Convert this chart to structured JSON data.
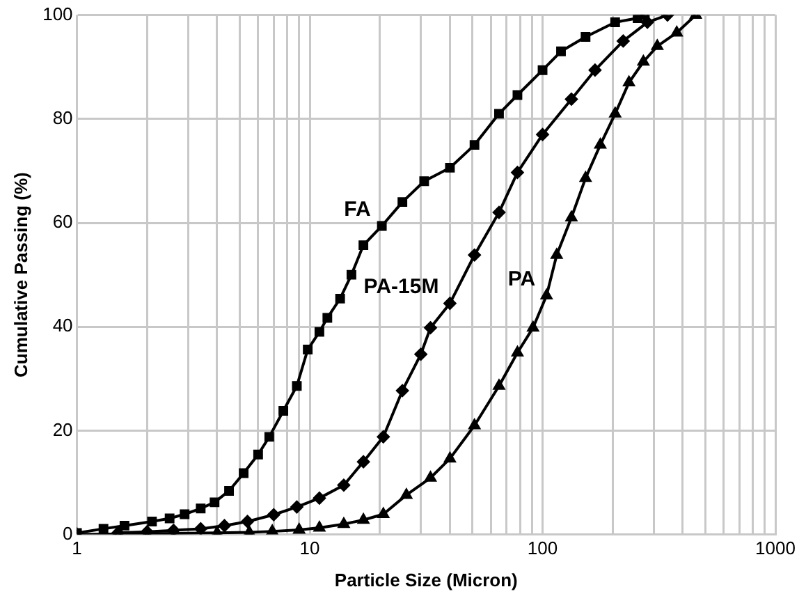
{
  "chart_data": {
    "type": "line",
    "xlabel": "Particle Size (Micron)",
    "ylabel": "Cumulative Passing (%)",
    "log": "x",
    "grid": true,
    "legend": false,
    "line_style": "solid",
    "xlim": [
      1,
      1000
    ],
    "xticks": [
      1,
      {
        "value": 2,
        "label": null
      },
      {
        "value": 3,
        "label": null
      },
      {
        "value": 4,
        "label": null
      },
      {
        "value": 5,
        "label": null
      },
      {
        "value": 6,
        "label": null
      },
      {
        "value": 7,
        "label": null
      },
      {
        "value": 8,
        "label": null
      },
      {
        "value": 9,
        "label": null
      },
      10,
      {
        "value": 20,
        "label": null
      },
      {
        "value": 30,
        "label": null
      },
      {
        "value": 40,
        "label": null
      },
      {
        "value": 50,
        "label": null
      },
      {
        "value": 60,
        "label": null
      },
      {
        "value": 70,
        "label": null
      },
      {
        "value": 80,
        "label": null
      },
      {
        "value": 90,
        "label": null
      },
      100,
      {
        "value": 200,
        "label": null
      },
      {
        "value": 300,
        "label": null
      },
      {
        "value": 400,
        "label": null
      },
      {
        "value": 500,
        "label": null
      },
      {
        "value": 600,
        "label": null
      },
      {
        "value": 700,
        "label": null
      },
      {
        "value": 800,
        "label": null
      },
      {
        "value": 900,
        "label": null
      },
      1000
    ],
    "ylim": [
      0,
      100
    ],
    "yticks": [
      0,
      20,
      40,
      60,
      80,
      100
    ],
    "series": [
      {
        "name": "FA",
        "color": "#000000",
        "marker": "square",
        "x": [
          1,
          1.3,
          1.6,
          2.1,
          2.5,
          2.9,
          3.4,
          3.9,
          4.5,
          5.2,
          6,
          6.7,
          7.7,
          8.8,
          9.8,
          11,
          11.9,
          13.5,
          15.1,
          17,
          20.4,
          25,
          31,
          40,
          51,
          65,
          78,
          100,
          120,
          153,
          205,
          256,
          275
        ],
        "values": [
          0.3,
          1.1,
          1.7,
          2.5,
          3.1,
          3.9,
          5,
          6.2,
          8.4,
          11.8,
          15.4,
          18.8,
          23.8,
          28.6,
          35.6,
          39,
          41.7,
          45.4,
          50,
          55.7,
          59.4,
          64,
          68,
          70.6,
          75,
          81,
          84.6,
          89.4,
          93,
          95.8,
          98.6,
          99.4,
          100
        ]
      },
      {
        "name": "PA-15M",
        "color": "#000000",
        "marker": "diamond",
        "x": [
          1.5,
          2,
          2.6,
          3.4,
          4.3,
          5.4,
          7,
          8.8,
          11,
          14,
          17,
          20.7,
          25,
          30,
          33,
          40,
          51,
          65,
          78,
          100,
          133,
          168,
          222,
          282,
          344
        ],
        "values": [
          0.3,
          0.5,
          0.8,
          1.1,
          1.7,
          2.5,
          3.8,
          5.3,
          7,
          9.5,
          14,
          18.8,
          27.7,
          34.7,
          39.8,
          44.5,
          53.8,
          62,
          69.7,
          77,
          83.8,
          89.4,
          95,
          98.6,
          100
        ]
      },
      {
        "name": "PA",
        "color": "#000000",
        "marker": "triangle",
        "x": [
          1,
          4,
          5.5,
          6.9,
          9,
          11,
          14,
          17,
          20.7,
          26,
          33,
          40,
          51,
          65,
          78,
          91,
          104,
          115,
          133,
          153,
          177,
          205,
          235,
          271,
          311,
          377,
          455
        ],
        "values": [
          0,
          0.3,
          0.4,
          0.6,
          0.9,
          1.3,
          2,
          2.8,
          3.9,
          7.6,
          10.9,
          14.6,
          21,
          28.6,
          35,
          39.8,
          46,
          53.8,
          61,
          68.6,
          75,
          81,
          87,
          91,
          94,
          96.6,
          100
        ]
      }
    ]
  }
}
